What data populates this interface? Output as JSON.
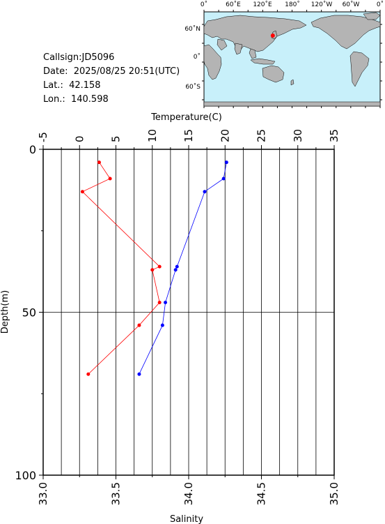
{
  "info": {
    "callsign": "Callsign:JD5096",
    "date": "Date:  2025/08/25 20:51(UTC)",
    "lat": "Lat.:  42.158",
    "lon": "Lon.:  140.598"
  },
  "map": {
    "lon_labels": [
      "0˚",
      "60˚E",
      "120˚E",
      "180˚",
      "120˚W",
      "60˚W",
      "0˚"
    ],
    "lat_labels": [
      "60˚N",
      "0˚",
      "60˚S"
    ],
    "station": {
      "lat": 42.158,
      "lon": 140.598
    },
    "colors": {
      "ocean": "#c8f0fa",
      "land": "#b4b4b4",
      "marker": "#ff0000"
    }
  },
  "chart_data": {
    "type": "line",
    "title": "",
    "top_axis": {
      "label": "Temperature(C)",
      "range": [
        -5,
        35
      ],
      "ticks": [
        "-5",
        "0",
        "5",
        "10",
        "15",
        "20",
        "25",
        "30",
        "35"
      ]
    },
    "bottom_axis": {
      "label": "Salinity",
      "range": [
        33.0,
        35.0
      ],
      "ticks": [
        "33.0",
        "33.5",
        "34.0",
        "34.5",
        "35.0"
      ]
    },
    "left_axis": {
      "label": "Depth(m)",
      "range": [
        0,
        100
      ],
      "inverted": true,
      "ticks": [
        "0",
        "50",
        "100"
      ]
    },
    "grid": true,
    "series": [
      {
        "key": "temperature",
        "color": "#ff0000",
        "axis": "top",
        "points": [
          {
            "value": 2.7,
            "depth": 4
          },
          {
            "value": 4.2,
            "depth": 9
          },
          {
            "value": 0.4,
            "depth": 13
          },
          {
            "value": 11.0,
            "depth": 36
          },
          {
            "value": 10.0,
            "depth": 37
          },
          {
            "value": 11.0,
            "depth": 47
          },
          {
            "value": 8.2,
            "depth": 54
          },
          {
            "value": 1.2,
            "depth": 69
          }
        ]
      },
      {
        "key": "salinity",
        "color": "#0000ff",
        "axis": "bottom",
        "points": [
          {
            "value": 34.26,
            "depth": 4
          },
          {
            "value": 34.24,
            "depth": 9
          },
          {
            "value": 34.11,
            "depth": 13
          },
          {
            "value": 33.92,
            "depth": 36
          },
          {
            "value": 33.91,
            "depth": 37
          },
          {
            "value": 33.84,
            "depth": 47
          },
          {
            "value": 33.82,
            "depth": 54
          },
          {
            "value": 33.66,
            "depth": 69
          }
        ]
      }
    ]
  }
}
